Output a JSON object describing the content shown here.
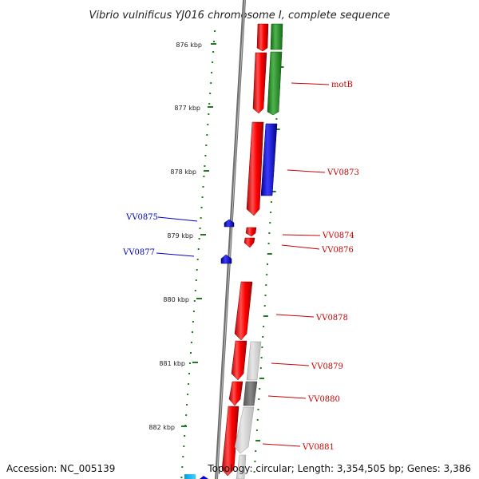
{
  "header": {
    "title": "Vibrio vulnificus YJ016 chromosome I, complete sequence"
  },
  "axis": {
    "tick_labels": [
      "876 kbp",
      "877 kbp",
      "878 kbp",
      "879 kbp",
      "880 kbp",
      "881 kbp",
      "882 kbp"
    ]
  },
  "genes": {
    "motB": "motB",
    "VV0873": "VV0873",
    "VV0874": "VV0874",
    "VV0875": "VV0875",
    "VV0876": "VV0876",
    "VV0877": "VV0877",
    "VV0878": "VV0878",
    "VV0879": "VV0879",
    "VV0880": "VV0880",
    "VV0881": "VV0881"
  },
  "colors": {
    "forward_cds": "#ff0000",
    "reverse_cds": "#0000ff",
    "green_feature": "#1f8a1f",
    "grey_feature": "#c8c8c8",
    "axis_ticks": "#1f7a1f",
    "label_right": "#cc0000",
    "label_left": "#0000cc"
  },
  "footer": {
    "accession": "Accession: NC_005139",
    "summary": "Topology: circular; Length: 3,354,505 bp; Genes: 3,386"
  }
}
